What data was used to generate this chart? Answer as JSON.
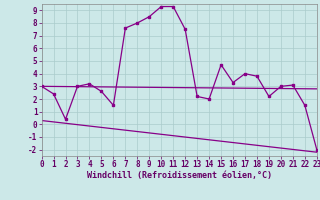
{
  "xlabel": "Windchill (Refroidissement éolien,°C)",
  "background_color": "#cce8e8",
  "grid_color": "#aacccc",
  "line_color": "#880088",
  "xlim": [
    0,
    23
  ],
  "ylim": [
    -2.5,
    9.5
  ],
  "xticks": [
    0,
    1,
    2,
    3,
    4,
    5,
    6,
    7,
    8,
    9,
    10,
    11,
    12,
    13,
    14,
    15,
    16,
    17,
    18,
    19,
    20,
    21,
    22,
    23
  ],
  "yticks": [
    -2,
    -1,
    0,
    1,
    2,
    3,
    4,
    5,
    6,
    7,
    8,
    9
  ],
  "series1_x": [
    0,
    1,
    2,
    3,
    4,
    5,
    6,
    7,
    8,
    9,
    10,
    11,
    12,
    13,
    14,
    15,
    16,
    17,
    18,
    19,
    20,
    21,
    22,
    23
  ],
  "series1_y": [
    3.0,
    2.4,
    0.4,
    3.0,
    3.2,
    2.6,
    1.5,
    7.6,
    8.0,
    8.5,
    9.3,
    9.3,
    7.5,
    2.2,
    2.0,
    4.7,
    3.3,
    4.0,
    3.8,
    2.2,
    3.0,
    3.1,
    1.5,
    -2.0
  ],
  "series2_x": [
    0,
    23
  ],
  "series2_y": [
    3.0,
    2.8
  ],
  "series3_x": [
    0,
    23
  ],
  "series3_y": [
    0.3,
    -2.2
  ]
}
